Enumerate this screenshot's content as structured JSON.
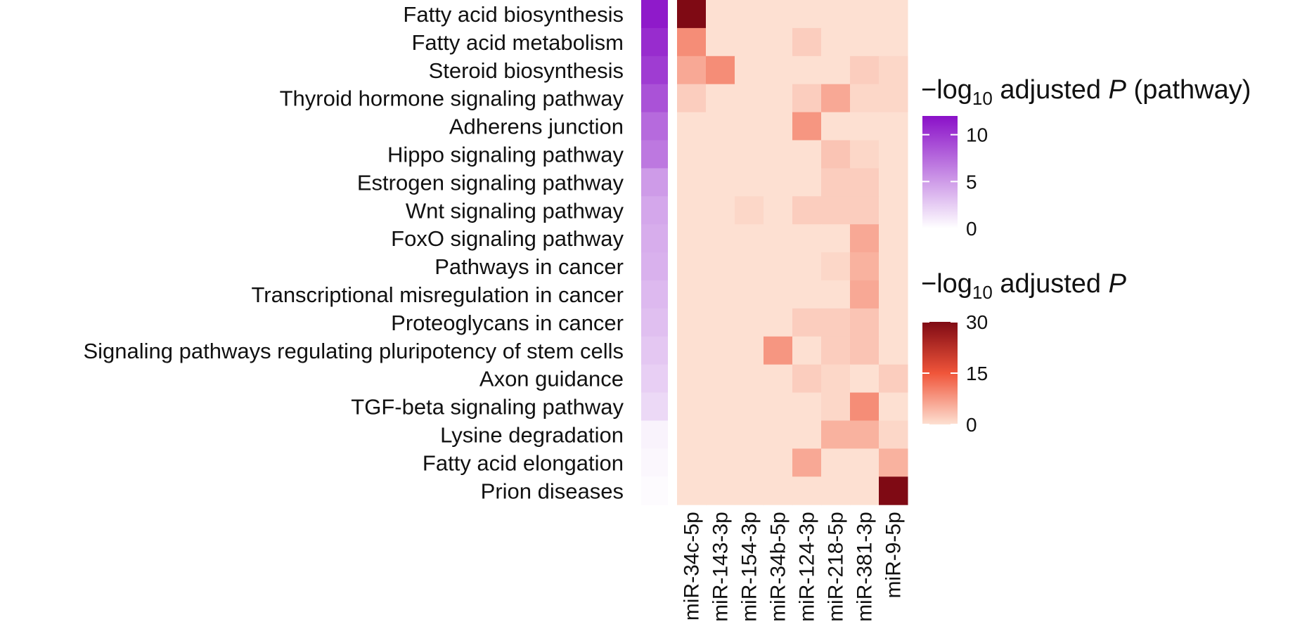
{
  "chart_data": {
    "type": "heatmap",
    "pathways": [
      "Fatty acid biosynthesis",
      "Fatty acid metabolism",
      "Steroid biosynthesis",
      "Thyroid hormone signaling pathway",
      "Adherens junction",
      "Hippo signaling pathway",
      "Estrogen signaling pathway",
      "Wnt signaling pathway",
      "FoxO signaling pathway",
      "Pathways in cancer",
      "Transcriptional misregulation in cancer",
      "Proteoglycans in cancer",
      "Signaling pathways regulating pluripotency of stem cells",
      "Axon guidance",
      "TGF-beta signaling pathway",
      "Lysine degradation",
      "Fatty acid elongation",
      "Prion diseases"
    ],
    "mirnas": [
      "miR-34c-5p",
      "miR-143-3p",
      "miR-154-3p",
      "miR-34b-5p",
      "miR-124-3p",
      "miR-218-5p",
      "miR-381-3p",
      "miR-9-5p"
    ],
    "pathway_values": [
      11.5,
      10.6,
      9.8,
      8.7,
      7.5,
      6.8,
      5.0,
      4.4,
      4.1,
      3.9,
      3.5,
      3.2,
      2.8,
      2.4,
      1.9,
      0.6,
      0.4,
      0.2
    ],
    "values": [
      [
        30,
        0,
        0,
        0,
        0,
        0,
        0,
        0
      ],
      [
        9,
        0,
        0,
        0,
        2,
        0,
        0,
        0
      ],
      [
        6,
        9,
        0,
        0,
        0,
        0,
        2,
        1
      ],
      [
        2,
        0,
        0,
        0,
        2,
        6,
        1,
        1
      ],
      [
        0,
        0,
        0,
        0,
        8,
        0,
        0,
        0
      ],
      [
        0,
        0,
        0,
        0,
        0,
        3,
        1,
        0
      ],
      [
        0,
        0,
        0,
        0,
        0,
        2,
        2,
        0
      ],
      [
        0,
        0,
        1,
        0,
        2,
        2,
        2,
        0
      ],
      [
        0,
        0,
        0,
        0,
        0,
        0,
        6,
        0
      ],
      [
        0,
        0,
        0,
        0,
        0,
        1,
        5,
        0
      ],
      [
        0,
        0,
        0,
        0,
        0,
        0,
        6,
        0
      ],
      [
        0,
        0,
        0,
        0,
        2,
        2,
        3,
        0
      ],
      [
        0,
        0,
        0,
        8,
        0,
        2,
        3,
        0
      ],
      [
        0,
        0,
        0,
        0,
        2,
        1,
        0,
        2
      ],
      [
        0,
        0,
        0,
        0,
        0,
        1,
        9,
        0
      ],
      [
        0,
        0,
        0,
        0,
        0,
        5,
        5,
        1
      ],
      [
        0,
        0,
        0,
        0,
        6,
        0,
        0,
        5
      ],
      [
        0,
        0,
        0,
        0,
        0,
        0,
        0,
        30
      ]
    ],
    "legend_pathway": {
      "title_prefix": "−log",
      "title_sub": "10",
      "title_mid": " adjusted ",
      "title_italic": "P",
      "title_suffix": " (pathway)",
      "ticks": [
        10,
        5,
        0
      ],
      "range": [
        0,
        12
      ],
      "color_low": "#ffffff",
      "color_high": "#8a10c8"
    },
    "legend_mirna": {
      "title_prefix": "−log",
      "title_sub": "10",
      "title_mid": " adjusted ",
      "title_italic": "P",
      "ticks": [
        30,
        15,
        0
      ],
      "range": [
        0,
        30
      ],
      "colors": [
        "#fde0d2",
        "#f0553a",
        "#7f0a14"
      ]
    }
  }
}
